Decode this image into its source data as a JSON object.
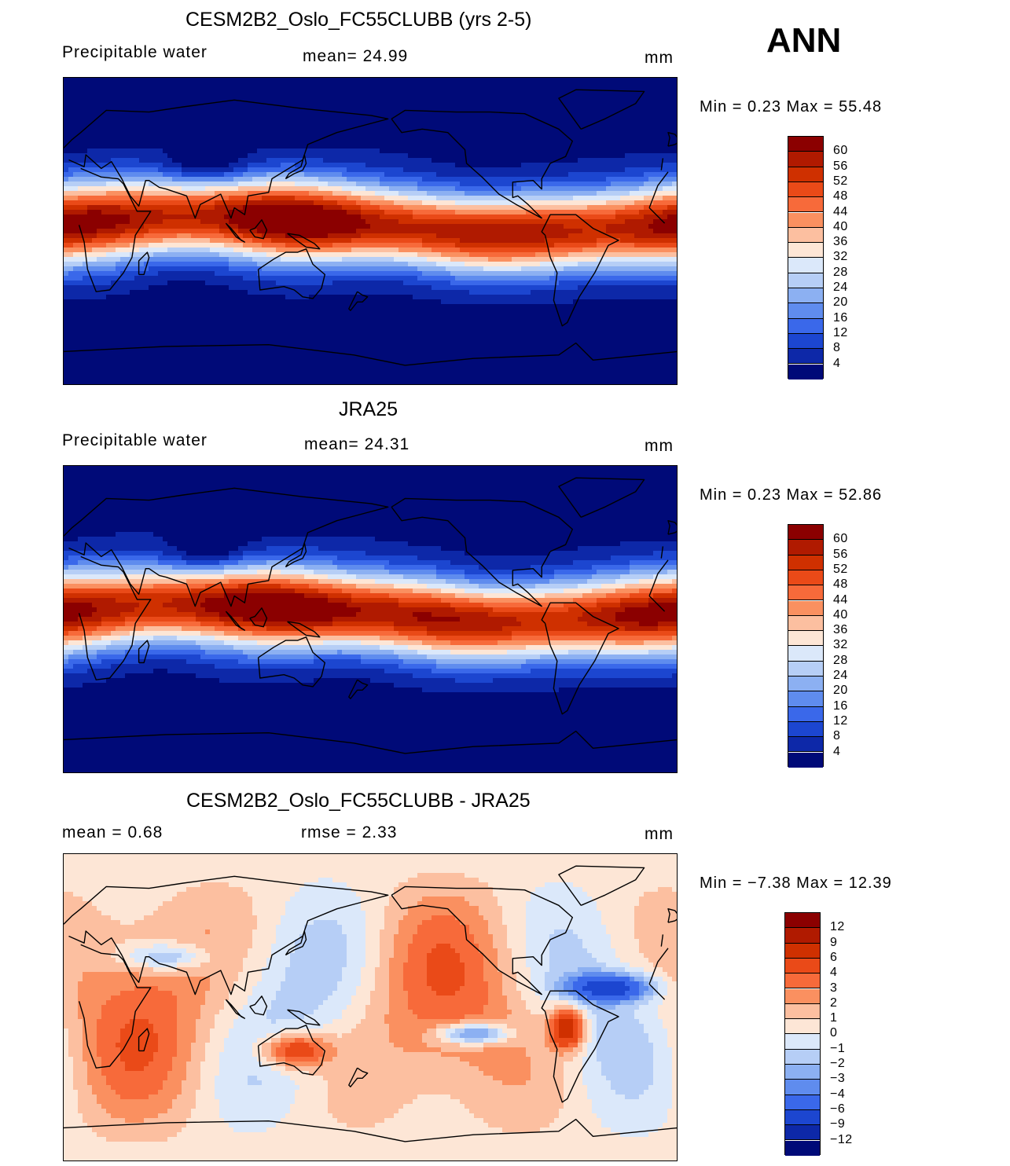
{
  "season": "ANN",
  "panels": [
    {
      "title": "CESM2B2_Oslo_FC55CLUBB (yrs 2-5)",
      "left_label": "Precipitable  water",
      "center_label": "mean=   24.99",
      "units": "mm",
      "minmax": "Min  =     0.23  Max  =    55.48",
      "kind": "abs"
    },
    {
      "title": "JRA25",
      "left_label": "Precipitable  water",
      "center_label": "mean=   24.31",
      "units": "mm",
      "minmax": "Min  =     0.23  Max  =    52.86",
      "kind": "abs"
    },
    {
      "title": "CESM2B2_Oslo_FC55CLUBB - JRA25",
      "left_label": "mean  =     0.68",
      "center_label": "rmse  =     2.33",
      "units": "mm",
      "minmax": "Min  =   −7.38  Max  =    12.39",
      "kind": "diff"
    }
  ],
  "colorbars": {
    "abs": {
      "ticks": [
        "60",
        "56",
        "52",
        "48",
        "44",
        "40",
        "36",
        "32",
        "28",
        "24",
        "20",
        "16",
        "12",
        "8",
        "4"
      ],
      "colors": [
        "#8b0000",
        "#b01a00",
        "#cf3000",
        "#ea4a18",
        "#f76a3a",
        "#fa9060",
        "#fcbfa0",
        "#fde6d6",
        "#dbe8fa",
        "#b6cef6",
        "#8cb0f2",
        "#5f8cee",
        "#3a68ea",
        "#1c46d0",
        "#0d28a8",
        "#000a78"
      ]
    },
    "diff": {
      "ticks": [
        "12",
        "9",
        "6",
        "4",
        "3",
        "2",
        "1",
        "0",
        "−1",
        "−2",
        "−3",
        "−4",
        "−6",
        "−9",
        "−12"
      ],
      "colors": [
        "#8b0000",
        "#b01a00",
        "#cf3000",
        "#ea4a18",
        "#f76a3a",
        "#fa9060",
        "#fcbfa0",
        "#fde6d6",
        "#dbe8fa",
        "#b6cef6",
        "#8cb0f2",
        "#5f8cee",
        "#3a68ea",
        "#1c46d0",
        "#0d28a8",
        "#000a78"
      ]
    }
  },
  "map_data": {
    "projection": "cylindrical-equidistant",
    "central_longitude": 180,
    "variable": "Precipitable water",
    "units": "mm"
  }
}
